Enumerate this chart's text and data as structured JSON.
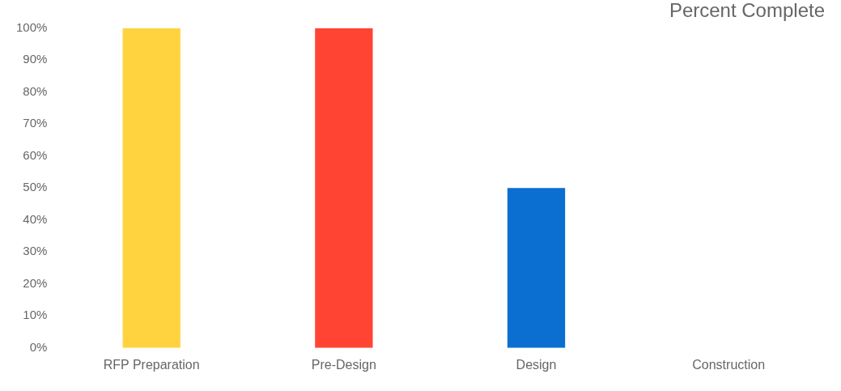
{
  "chart_data": {
    "type": "bar",
    "title": "Percent Complete",
    "categories": [
      "RFP Preparation",
      "Pre-Design",
      "Design",
      "Construction"
    ],
    "values": [
      100,
      100,
      50,
      0
    ],
    "colors": [
      "#ffd33f",
      "#ff4433",
      "#0a6fd0",
      "#a0a0a0"
    ],
    "ylim": [
      0,
      100
    ],
    "yticks": [
      {
        "value": 0,
        "label": "0%"
      },
      {
        "value": 10,
        "label": "10%"
      },
      {
        "value": 20,
        "label": "20%"
      },
      {
        "value": 30,
        "label": "30%"
      },
      {
        "value": 40,
        "label": "40%"
      },
      {
        "value": 50,
        "label": "50%"
      },
      {
        "value": 60,
        "label": "60%"
      },
      {
        "value": 70,
        "label": "70%"
      },
      {
        "value": 80,
        "label": "80%"
      },
      {
        "value": 90,
        "label": "90%"
      },
      {
        "value": 100,
        "label": "100%"
      }
    ],
    "grid": false,
    "legend": false
  }
}
